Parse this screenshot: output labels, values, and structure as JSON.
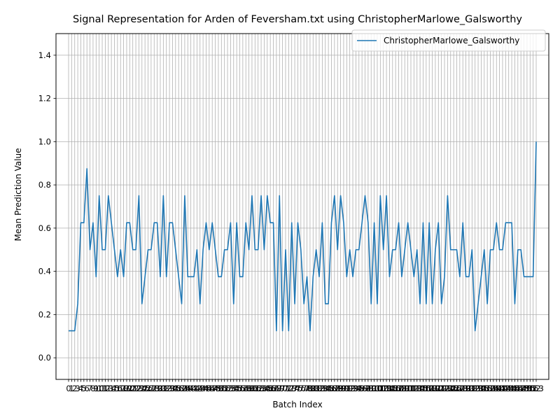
{
  "chart_data": {
    "type": "line",
    "title": "Signal Representation for Arden of Feversham.txt using ChristopherMarlowe_Galsworthy",
    "xlabel": "Batch Index",
    "ylabel": "Mean Prediction Value",
    "ylim": [
      -0.1,
      1.5
    ],
    "yticks": [
      0.0,
      0.2,
      0.4,
      0.6,
      0.8,
      1.0,
      1.2,
      1.4
    ],
    "ytick_labels": [
      "0.0",
      "0.2",
      "0.4",
      "0.6",
      "0.8",
      "1.0",
      "1.2",
      "1.4"
    ],
    "x_count": 154,
    "grid": true,
    "legend_position": "upper-right",
    "color": "#1f77b4",
    "series": [
      {
        "name": "ChristopherMarlowe_Galsworthy",
        "values": [
          0.125,
          0.125,
          0.125,
          0.25,
          0.625,
          0.625,
          0.875,
          0.5,
          0.625,
          0.375,
          0.75,
          0.5,
          0.5,
          0.75,
          0.625,
          0.5,
          0.375,
          0.5,
          0.375,
          0.625,
          0.625,
          0.5,
          0.5,
          0.75,
          0.25,
          0.375,
          0.5,
          0.5,
          0.625,
          0.625,
          0.375,
          0.75,
          0.375,
          0.625,
          0.625,
          0.5,
          0.375,
          0.25,
          0.75,
          0.375,
          0.375,
          0.375,
          0.5,
          0.25,
          0.5,
          0.625,
          0.5,
          0.625,
          0.5,
          0.375,
          0.375,
          0.5,
          0.5,
          0.625,
          0.25,
          0.625,
          0.375,
          0.375,
          0.625,
          0.5,
          0.75,
          0.5,
          0.5,
          0.75,
          0.5,
          0.75,
          0.625,
          0.625,
          0.125,
          0.75,
          0.125,
          0.5,
          0.125,
          0.625,
          0.25,
          0.625,
          0.5,
          0.25,
          0.375,
          0.125,
          0.375,
          0.5,
          0.375,
          0.625,
          0.25,
          0.25,
          0.625,
          0.75,
          0.5,
          0.75,
          0.625,
          0.375,
          0.5,
          0.375,
          0.5,
          0.5,
          0.625,
          0.75,
          0.625,
          0.25,
          0.625,
          0.25,
          0.75,
          0.5,
          0.75,
          0.375,
          0.5,
          0.5,
          0.625,
          0.375,
          0.5,
          0.625,
          0.5,
          0.375,
          0.5,
          0.25,
          0.625,
          0.25,
          0.625,
          0.25,
          0.5,
          0.625,
          0.25,
          0.375,
          0.75,
          0.5,
          0.5,
          0.5,
          0.375,
          0.625,
          0.375,
          0.375,
          0.5,
          0.125,
          0.25,
          0.375,
          0.5,
          0.25,
          0.5,
          0.5,
          0.625,
          0.5,
          0.5,
          0.625,
          0.625,
          0.625,
          0.25,
          0.5,
          0.5,
          0.375,
          0.375,
          0.375,
          0.375,
          1.0
        ]
      }
    ]
  }
}
